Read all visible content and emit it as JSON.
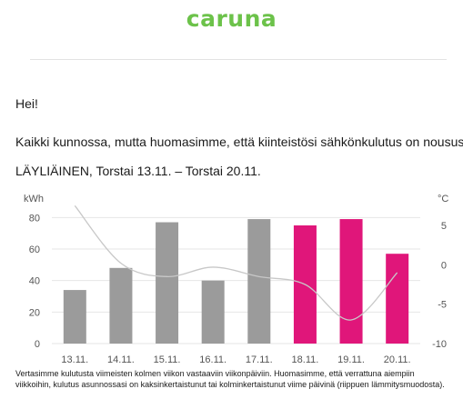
{
  "brand": {
    "logo_text": "caruna",
    "color": "#6cc24a"
  },
  "email": {
    "greeting": "Hei!",
    "message": "Kaikki kunnossa, mutta huomasimme, että kiinteistösi sähkönkulutus on nousussa.",
    "period": "LÄYLIÄINEN, Torstai 13.11. – Torstai 20.11.",
    "footnote": "Vertasimme kulutusta viimeisten kolmen viikon vastaaviin viikonpäiviin. Huomasimme, että verrattuna aiempiin viikkoihin, kulutus asunnossasi on kaksinkertaistunut tai kolminkertaistunut viime päivinä (riippuen lämmitysmuodosta)."
  },
  "chart_data": {
    "type": "bar",
    "categories": [
      "13.11.",
      "14.11.",
      "15.11.",
      "16.11.",
      "17.11.",
      "18.11.",
      "19.11.",
      "20.11."
    ],
    "values": [
      34,
      48,
      77,
      40,
      79,
      75,
      79,
      57
    ],
    "highlight": [
      false,
      false,
      false,
      false,
      false,
      true,
      true,
      true
    ],
    "colors": {
      "normal": "#9b9b9b",
      "highlight": "#e0167a",
      "temperature_line": "#c8c8c8",
      "grid": "#e6e6e6"
    },
    "ylabel": "kWh",
    "ylim": [
      0,
      90
    ],
    "yticks": [
      0,
      20,
      40,
      60,
      80
    ],
    "y2label": "°C",
    "y2lim": [
      -10,
      8
    ],
    "y2ticks": [
      5,
      0,
      -5,
      -10
    ],
    "temperature": {
      "x": [
        13,
        14,
        15,
        16,
        17,
        18,
        19,
        20
      ],
      "values": [
        7.5,
        0.2,
        -1.5,
        -0.3,
        -1.5,
        -2.5,
        -7,
        -1
      ]
    },
    "grid": true
  }
}
